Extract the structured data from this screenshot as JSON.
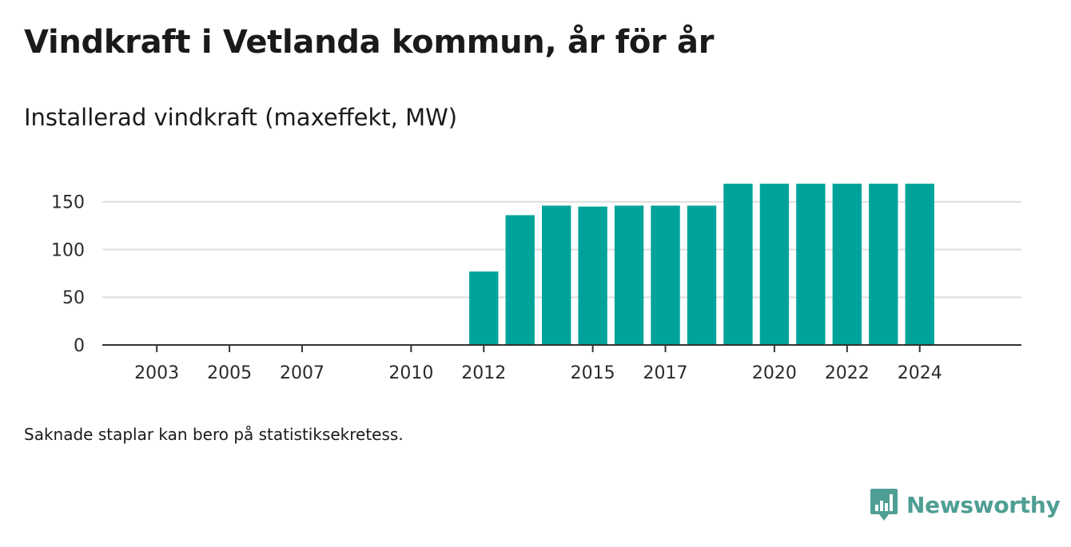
{
  "chart_data": {
    "type": "bar",
    "title": "Vindkraft i Vetlanda kommun, år för år",
    "subtitle": "Installerad vindkraft (maxeffekt, MW)",
    "x": [
      2012,
      2013,
      2014,
      2015,
      2016,
      2017,
      2018,
      2019,
      2020,
      2021,
      2022,
      2023,
      2024
    ],
    "values": [
      77,
      136,
      146,
      145,
      146,
      146,
      146,
      169,
      169,
      169,
      169,
      169,
      169
    ],
    "x_tick_labels": [
      "2003",
      "2005",
      "2007",
      "2010",
      "2012",
      "2015",
      "2017",
      "2020",
      "2022",
      "2024"
    ],
    "y_ticks": [
      0,
      50,
      100,
      150
    ],
    "ylim": [
      0,
      169
    ],
    "xlim": [
      2001.5,
      2026.8
    ],
    "grid": true,
    "bar_color": "#00a39a"
  },
  "note": "Saknade staplar kan bero på statistiksekretess.",
  "brand": {
    "name": "Newsworthy",
    "color": "#4f9e94"
  }
}
